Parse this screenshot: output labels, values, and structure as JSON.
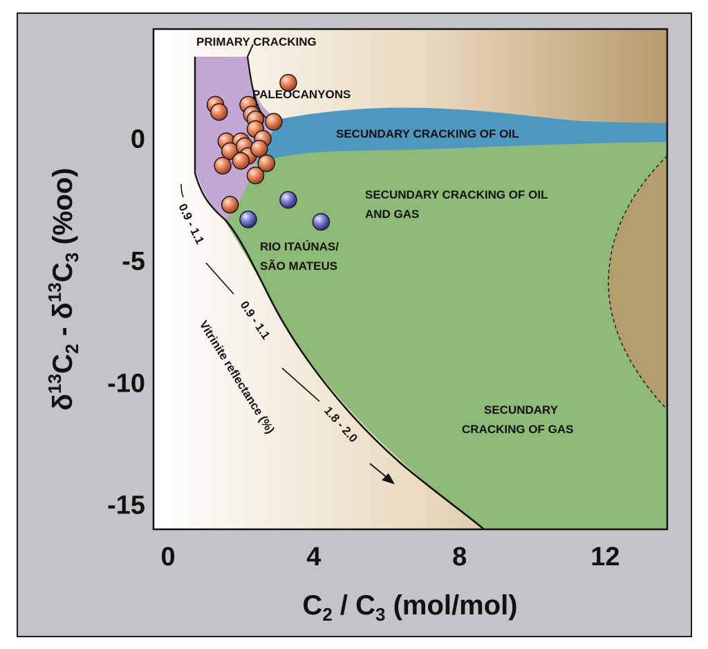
{
  "chart_data": {
    "type": "scatter",
    "xlabel_base": "C",
    "xlabel_sub1": "2",
    "xlabel_mid": " / C",
    "xlabel_sub2": "3",
    "xlabel_tail": " (mol/mol)",
    "ylabel_delta": "δ",
    "ylabel_sup": "13",
    "ylabel_c": "C",
    "ylabel_sub_a": "2",
    "ylabel_minus": " - δ",
    "ylabel_sub_b": "3",
    "ylabel_unit": " (%oo)",
    "xlim": [
      -0.4,
      13.7
    ],
    "ylim": [
      -16.0,
      4.5
    ],
    "xticks": [
      0,
      4,
      8,
      12
    ],
    "yticks": [
      0,
      -5,
      -10,
      -15
    ],
    "xtick_labels": [
      "0",
      "4",
      "8",
      "12"
    ],
    "ytick_labels": [
      "0",
      "-5",
      "-10",
      "-15"
    ],
    "regions": {
      "primary": "PRIMARY CRACKING",
      "paleocanyons": "PALEOCANYONS",
      "secundary_oil": "SECUNDARY CRACKING OF OIL",
      "oil_gas_1": "SECUNDARY CRACKING OF OIL",
      "oil_gas_2": "AND GAS",
      "rio_1": "RIO ITAÚNAS/",
      "rio_2": "SÃO MATEUS",
      "gas_1": "SECUNDARY",
      "gas_2": "CRACKING OF GAS"
    },
    "maturity_labels": {
      "m1": "0.9 - 1.1",
      "m2": "0.9 - 1.1",
      "m3": "1.8 - 2.0",
      "vitrinite": "Vitrinite reflectance (%)"
    },
    "colors": {
      "primary": "#c2a6d4",
      "oil": "#4e97bf",
      "oil_gas": "#8eba78",
      "paleocanyons_label": "#c0282a",
      "rio_label": "#2e3f8e",
      "paleocanyons_marker": "#e07d55",
      "rio_marker": "#6f73c8"
    },
    "series": [
      {
        "name": "PALEOCANYONS",
        "x": [
          3.3,
          1.3,
          1.4,
          2.2,
          2.3,
          2.4,
          2.4,
          2.9,
          1.6,
          2.0,
          2.6,
          1.7,
          2.1,
          2.2,
          2.5,
          2.0,
          2.7,
          1.5,
          2.4,
          1.7
        ],
        "y": [
          2.3,
          1.4,
          1.1,
          1.4,
          1.0,
          0.8,
          0.4,
          0.7,
          -0.1,
          -0.1,
          0.0,
          -0.5,
          -0.3,
          -0.7,
          -0.4,
          -0.9,
          -1.0,
          -1.1,
          -1.5,
          -2.7
        ]
      },
      {
        "name": "RIO ITAÚNAS/SÃO MATEUS",
        "x": [
          2.2,
          3.3,
          4.2
        ],
        "y": [
          -3.3,
          -2.5,
          -3.4
        ]
      }
    ]
  }
}
